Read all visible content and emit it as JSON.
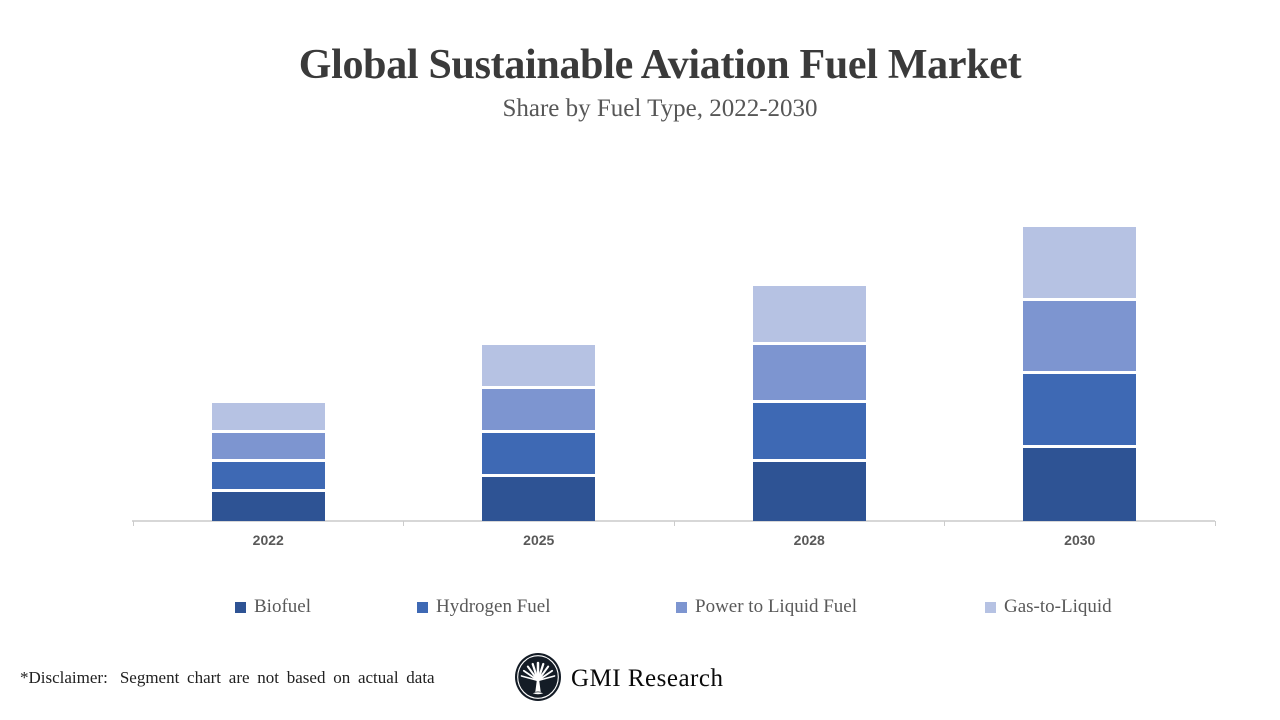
{
  "title": "Global Sustainable Aviation Fuel Market",
  "subtitle": "Share by Fuel Type, 2022-2030",
  "chart_data": {
    "type": "bar",
    "stacked": true,
    "title": "Global Sustainable Aviation Fuel Market",
    "subtitle": "Share by Fuel Type, 2022-2030",
    "categories": [
      "2022",
      "2025",
      "2028",
      "2030"
    ],
    "series": [
      {
        "name": "Biofuel",
        "color": "#2E5394",
        "values": [
          1,
          1.5,
          2,
          2.5
        ]
      },
      {
        "name": "Hydrogen Fuel",
        "color": "#3E69B4",
        "values": [
          1,
          1.5,
          2,
          2.5
        ]
      },
      {
        "name": "Power to Liquid Fuel",
        "color": "#7D95D0",
        "values": [
          1,
          1.5,
          2,
          2.5
        ]
      },
      {
        "name": "Gas-to-Liquid",
        "color": "#B6C2E3",
        "values": [
          1,
          1.5,
          2,
          2.5
        ]
      }
    ],
    "stack_totals": [
      4,
      6,
      8,
      10
    ],
    "ylim": [
      0,
      10
    ],
    "yaxis_visible": false,
    "grid": false,
    "legend_position": "bottom",
    "axis_color": "#d7d7d7",
    "label_color": "#595959"
  },
  "footer": {
    "disclaimer_label": "*Disclaimer:",
    "disclaimer_text": "Segment chart are not based on actual data",
    "brand": "GMI Research"
  }
}
